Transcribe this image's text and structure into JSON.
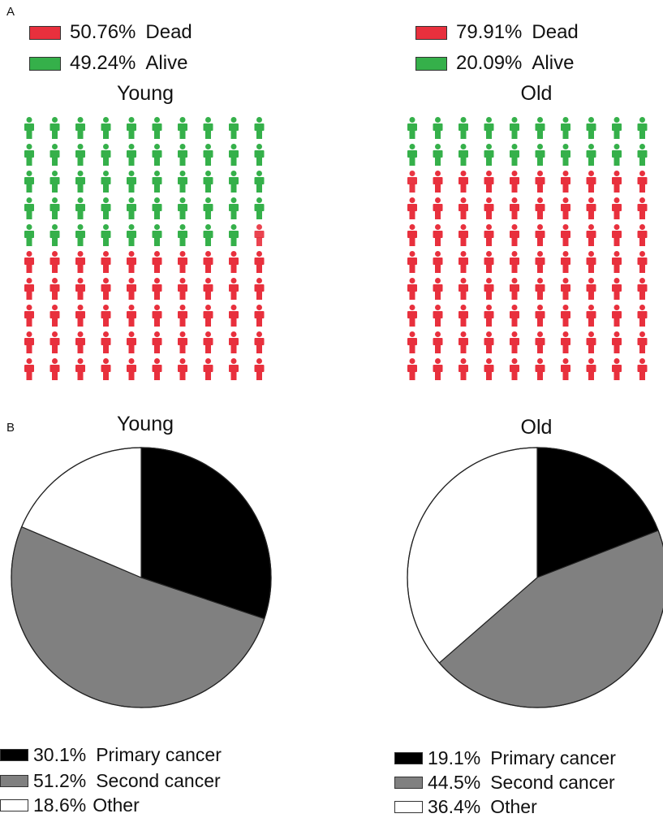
{
  "panels": {
    "a": "A",
    "b": "B"
  },
  "colors": {
    "dead": "#e8303d",
    "alive": "#35b04a",
    "primary": "#000000",
    "second": "#808080",
    "other": "#ffffff"
  },
  "chart_data": [
    {
      "type": "pictogram",
      "title": "Young",
      "legend": [
        {
          "label": "Dead",
          "pct_text": "50.76%",
          "value": 50.76,
          "color": "#e8303d"
        },
        {
          "label": "Alive",
          "pct_text": "49.24%",
          "value": 49.24,
          "color": "#35b04a"
        }
      ],
      "grid": {
        "rows": 10,
        "cols": 10
      }
    },
    {
      "type": "pictogram",
      "title": "Old",
      "legend": [
        {
          "label": "Dead",
          "pct_text": "79.91%",
          "value": 79.91,
          "color": "#e8303d"
        },
        {
          "label": "Alive",
          "pct_text": "20.09%",
          "value": 20.09,
          "color": "#35b04a"
        }
      ],
      "grid": {
        "rows": 10,
        "cols": 10
      }
    },
    {
      "type": "pie",
      "title": "Young",
      "slices": [
        {
          "label": "Primary cancer",
          "pct_text": "30.1%",
          "value": 30.1,
          "color": "#000000"
        },
        {
          "label": "Second cancer",
          "pct_text": "51.2%",
          "value": 51.2,
          "color": "#808080"
        },
        {
          "label": "Other",
          "pct_text": "18.6%",
          "value": 18.6,
          "color": "#ffffff"
        }
      ]
    },
    {
      "type": "pie",
      "title": "Old",
      "slices": [
        {
          "label": "Primary cancer",
          "pct_text": "19.1%",
          "value": 19.1,
          "color": "#000000"
        },
        {
          "label": "Second cancer",
          "pct_text": "44.5%",
          "value": 44.5,
          "color": "#808080"
        },
        {
          "label": "Other",
          "pct_text": "36.4%",
          "value": 36.4,
          "color": "#ffffff"
        }
      ]
    }
  ]
}
